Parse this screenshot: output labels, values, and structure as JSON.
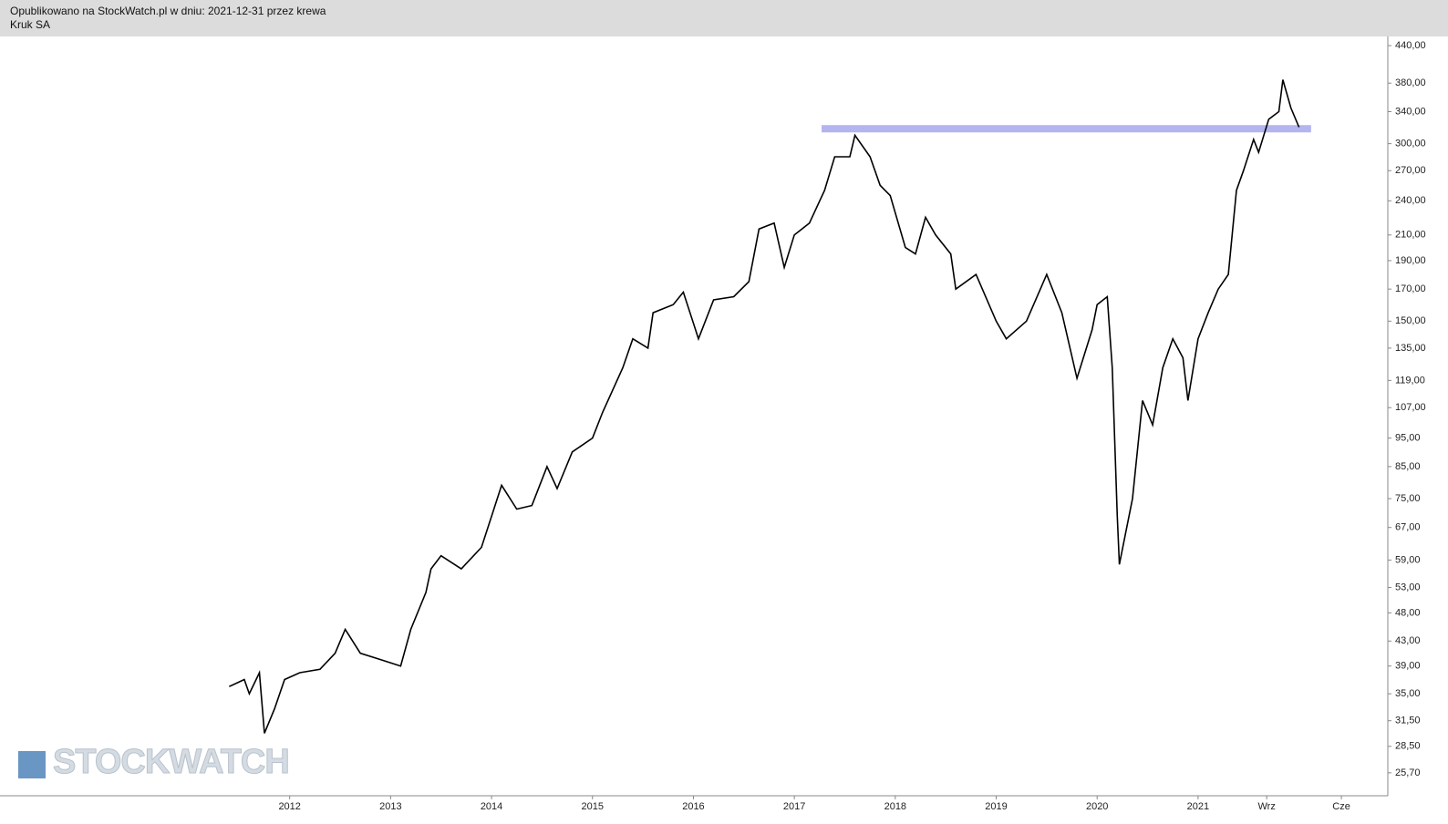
{
  "header": {
    "published": "Opublikowano na StockWatch.pl w dniu: 2021-12-31 przez krewa",
    "instrument": "Kruk SA"
  },
  "chart_data": {
    "type": "line",
    "watermark": "STOCKWATCH",
    "log_scale": true,
    "color": "#000000",
    "xlim": [
      2009.13,
      2022.88
    ],
    "ylim": [
      23.5,
      456
    ],
    "xticks": [
      2012,
      2013,
      2014,
      2015,
      2016,
      2017,
      2018,
      2019,
      2020,
      2021,
      {
        "value": 2021.68,
        "label": "Wrz"
      },
      {
        "value": 2022.42,
        "label": "Cze"
      }
    ],
    "yticks": [
      {
        "value": 440,
        "label": "440,00"
      },
      {
        "value": 380,
        "label": "380,00"
      },
      {
        "value": 340,
        "label": "340,00"
      },
      {
        "value": 300,
        "label": "300,00"
      },
      {
        "value": 270,
        "label": "270,00"
      },
      {
        "value": 240,
        "label": "240,00"
      },
      {
        "value": 210,
        "label": "210,00"
      },
      {
        "value": 190,
        "label": "190,00"
      },
      {
        "value": 170,
        "label": "170,00"
      },
      {
        "value": 150,
        "label": "150,00"
      },
      {
        "value": 135,
        "label": "135,00"
      },
      {
        "value": 119,
        "label": "119,00"
      },
      {
        "value": 107,
        "label": "107,00"
      },
      {
        "value": 95,
        "label": "95,00"
      },
      {
        "value": 85,
        "label": "85,00"
      },
      {
        "value": 75,
        "label": "75,00"
      },
      {
        "value": 67,
        "label": "67,00"
      },
      {
        "value": 59,
        "label": "59,00"
      },
      {
        "value": 53,
        "label": "53,00"
      },
      {
        "value": 48,
        "label": "48,00"
      },
      {
        "value": 43,
        "label": "43,00"
      },
      {
        "value": 39,
        "label": "39,00"
      },
      {
        "value": 35,
        "label": "35,00"
      },
      {
        "value": 31.5,
        "label": "31,50"
      },
      {
        "value": 28.5,
        "label": "28,50"
      },
      {
        "value": 25.7,
        "label": "25,70"
      }
    ],
    "band": {
      "x": [
        2017.27,
        2022.12
      ],
      "value": 318,
      "color": "#b4b4f0"
    },
    "series": [
      {
        "color": "#000000",
        "x": [
          2011.4,
          2011.55,
          2011.6,
          2011.7,
          2011.75,
          2011.85,
          2011.95,
          2012.1,
          2012.3,
          2012.45,
          2012.55,
          2012.7,
          2012.9,
          2013.1,
          2013.2,
          2013.35,
          2013.4,
          2013.5,
          2013.7,
          2013.9,
          2014.0,
          2014.1,
          2014.25,
          2014.4,
          2014.55,
          2014.65,
          2014.8,
          2015.0,
          2015.1,
          2015.3,
          2015.4,
          2015.55,
          2015.6,
          2015.8,
          2015.9,
          2016.05,
          2016.2,
          2016.4,
          2016.55,
          2016.65,
          2016.8,
          2016.9,
          2017.0,
          2017.15,
          2017.3,
          2017.4,
          2017.55,
          2017.6,
          2017.75,
          2017.85,
          2017.95,
          2018.1,
          2018.2,
          2018.3,
          2018.4,
          2018.55,
          2018.6,
          2018.8,
          2019.0,
          2019.1,
          2019.3,
          2019.5,
          2019.65,
          2019.8,
          2019.95,
          2020.0,
          2020.1,
          2020.15,
          2020.2,
          2020.22,
          2020.35,
          2020.45,
          2020.55,
          2020.65,
          2020.75,
          2020.85,
          2020.9,
          2021.0,
          2021.1,
          2021.2,
          2021.3,
          2021.38,
          2021.45,
          2021.55,
          2021.6,
          2021.7,
          2021.8,
          2021.84,
          2021.92,
          2022.0
        ],
        "values": [
          36,
          37,
          35,
          38,
          30,
          33,
          37,
          38,
          38.5,
          41,
          45,
          41,
          40,
          39,
          45,
          52,
          57,
          60,
          57,
          62,
          70,
          79,
          72,
          73,
          85,
          78,
          90,
          95,
          105,
          125,
          140,
          135,
          155,
          160,
          168,
          140,
          163,
          165,
          175,
          215,
          220,
          185,
          210,
          220,
          250,
          285,
          285,
          310,
          285,
          255,
          245,
          200,
          195,
          225,
          210,
          195,
          170,
          180,
          150,
          140,
          150,
          180,
          155,
          120,
          145,
          160,
          165,
          125,
          70,
          58,
          75,
          110,
          100,
          125,
          140,
          130,
          110,
          140,
          155,
          170,
          180,
          250,
          270,
          305,
          290,
          330,
          340,
          385,
          345,
          320
        ]
      }
    ]
  }
}
